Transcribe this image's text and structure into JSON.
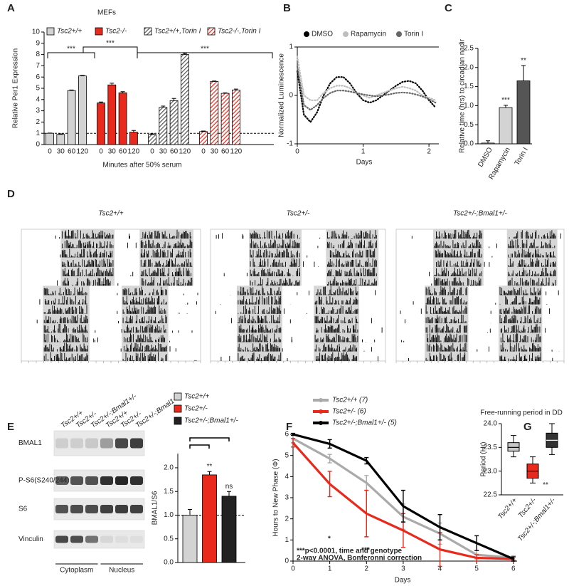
{
  "chart_data": [
    {
      "type": "bar",
      "panel": "A",
      "title": "MEFs",
      "y_label": "Relative Per1 Expression",
      "x_label": "Minutes after 50% serum",
      "categories": [
        "0",
        "30",
        "60",
        "120"
      ],
      "series": [
        {
          "name": "Tsc2+/+",
          "color": "#d3d3d3",
          "hatch": false,
          "values": [
            1.0,
            0.9,
            4.8,
            6.1
          ],
          "errors": [
            0.02,
            0.05,
            0.05,
            0.05
          ]
        },
        {
          "name": "Tsc2-/-",
          "color": "#e8291c",
          "hatch": false,
          "values": [
            3.7,
            5.3,
            4.6,
            1.1
          ],
          "errors": [
            0.08,
            0.15,
            0.1,
            0.15
          ]
        },
        {
          "name": "Tsc2+/+,Torin I",
          "color": "#555555",
          "hatch": true,
          "values": [
            0.9,
            3.3,
            3.9,
            8.0
          ],
          "errors": [
            0.05,
            0.12,
            0.2,
            0.1
          ]
        },
        {
          "name": "Tsc2-/-,Torin I",
          "color": "#e8291c",
          "hatch": true,
          "values": [
            1.15,
            5.6,
            4.55,
            4.85
          ],
          "errors": [
            0.05,
            0.05,
            0.05,
            0.08
          ]
        }
      ],
      "ylim": [
        0,
        10
      ],
      "yticks": [
        0,
        1,
        2,
        3,
        4,
        5,
        6,
        7,
        8,
        9,
        10
      ],
      "reference_line": 1,
      "annotations": [
        "***",
        "***",
        "***"
      ]
    },
    {
      "type": "line",
      "panel": "B",
      "y_label": "Normalized Luminescence",
      "x_label": "Days",
      "x": [
        0,
        0.1,
        0.2,
        0.3,
        0.4,
        0.5,
        0.6,
        0.7,
        0.8,
        0.9,
        1.0,
        1.1,
        1.2,
        1.3,
        1.4,
        1.5,
        1.6,
        1.7,
        1.8,
        1.9,
        2.0,
        2.1
      ],
      "series": [
        {
          "name": "DMSO",
          "color": "#000000",
          "values": [
            0.5,
            -0.4,
            -0.55,
            -0.35,
            0.0,
            0.25,
            0.38,
            0.38,
            0.25,
            0.05,
            -0.1,
            -0.15,
            -0.1,
            0.0,
            0.1,
            0.2,
            0.28,
            0.3,
            0.25,
            0.1,
            -0.1,
            -0.25
          ]
        },
        {
          "name": "Rapamycin",
          "color": "#bdbdbd",
          "values": [
            0.8,
            0.0,
            -0.1,
            -0.1,
            0.05,
            0.15,
            0.2,
            0.2,
            0.15,
            0.05,
            0.0,
            -0.05,
            0.0,
            0.05,
            0.1,
            0.15,
            0.18,
            0.15,
            0.1,
            0.0,
            -0.05,
            -0.1
          ]
        },
        {
          "name": "Torin I",
          "color": "#666666",
          "values": [
            0.6,
            -0.2,
            -0.3,
            -0.2,
            -0.05,
            0.05,
            0.1,
            0.1,
            0.08,
            0.05,
            0.02,
            0.0,
            -0.02,
            0.0,
            0.02,
            0.05,
            0.06,
            0.05,
            0.02,
            -0.02,
            -0.08,
            -0.15
          ]
        }
      ],
      "xlim": [
        0,
        2.15
      ],
      "ylim": [
        -1,
        1
      ],
      "xticks": [
        0,
        1,
        2
      ],
      "yticks": [
        -1,
        0,
        1
      ]
    },
    {
      "type": "bar",
      "panel": "C",
      "y_label": "Relative time (hrs) to circadian nadir",
      "categories": [
        "DMSO",
        "Rapamycin",
        "Torin I"
      ],
      "values": [
        0.02,
        0.95,
        1.65
      ],
      "errors": [
        0.06,
        0.06,
        0.4
      ],
      "colors": [
        "#ffffff",
        "#d3d3d3",
        "#555555"
      ],
      "ylim": [
        0,
        2.5
      ],
      "yticks": [
        {
          "value": 0,
          "label": "0.0"
        },
        0.5,
        {
          "value": 1,
          "label": "1.0"
        },
        1.5,
        {
          "value": 2,
          "label": "2.0"
        },
        2.5
      ],
      "significance": [
        null,
        "***",
        "**"
      ]
    },
    {
      "type": "actogram",
      "panel": "D",
      "titles": [
        "Tsc2+/+",
        "Tsc2+/-",
        "Tsc2+/-;Bmal1+/-"
      ],
      "title_colors": [
        "#999999",
        "#e8291c",
        "#111111"
      ]
    },
    {
      "type": "western_blot",
      "panel": "E",
      "lanes": [
        "Tsc2+/+",
        "Tsc2+/-",
        "Tsc2+/-;Bmal1+/-",
        "Tsc2+/+",
        "Tsc2+/-",
        "Tsc2+/-;Bmal1+/-"
      ],
      "proteins": [
        "BMAL1",
        "P-S6(S240/244)",
        "S6",
        "Vinculin"
      ],
      "fractions": [
        "Cytoplasm",
        "Nucleus"
      ]
    },
    {
      "type": "bar",
      "y_label": "BMAL1/S6",
      "series": [
        {
          "name": "Tsc2+/+",
          "color": "#d3d3d3",
          "values": [
            1.0
          ],
          "errors": [
            0.12
          ]
        },
        {
          "name": "Tsc2+/-",
          "color": "#e8291c",
          "values": [
            1.85
          ],
          "errors": [
            0.07
          ]
        },
        {
          "name": "Tsc2+/-;Bmal1+/-",
          "color": "#222222",
          "values": [
            1.4
          ],
          "errors": [
            0.1
          ]
        }
      ],
      "ylim": [
        0,
        2.3
      ],
      "yticks": [
        {
          "value": 0,
          "label": "0.0"
        },
        0.5,
        {
          "value": 1,
          "label": "1.0"
        },
        1.5,
        {
          "value": 2,
          "label": "2.0"
        }
      ],
      "reference_line": 1,
      "significance": [
        null,
        "**",
        "ns"
      ]
    },
    {
      "type": "line",
      "panel": "F",
      "y_label": "Hours to New Phase (Φ)",
      "x_label": "Days",
      "x": [
        0,
        1,
        2,
        3,
        4,
        5,
        6
      ],
      "series": [
        {
          "name": "Tsc2+/+ (7)",
          "color": "#aaaaaa",
          "values": [
            5.8,
            4.85,
            3.7,
            2.1,
            1.3,
            0.3,
            0.15
          ],
          "errors": [
            0.2,
            0.2,
            0.35,
            0.6,
            0.5,
            0.2,
            0.1
          ]
        },
        {
          "name": "Tsc2+/- (6)",
          "color": "#e8291c",
          "values": [
            5.6,
            3.65,
            2.25,
            1.45,
            0.55,
            0.15,
            0.1
          ],
          "errors": [
            0.2,
            0.6,
            1.1,
            0.8,
            0.8,
            0.15,
            0.1
          ]
        },
        {
          "name": "Tsc2+/-;Bmal1+/- (5)",
          "color": "#000000",
          "values": [
            6.0,
            5.55,
            4.75,
            2.6,
            1.6,
            0.85,
            0.1
          ],
          "errors": [
            0.05,
            0.2,
            0.15,
            0.75,
            0.6,
            0.35,
            0.1
          ]
        }
      ],
      "xlim": [
        0,
        6.1
      ],
      "ylim": [
        0,
        6
      ],
      "xticks": [
        0,
        1,
        2,
        3,
        4,
        5,
        6
      ],
      "yticks": [
        0,
        1,
        2,
        3,
        4,
        5,
        6
      ],
      "annotations": [
        "*",
        "***"
      ],
      "notes": [
        "***p<0.0001, time and genotype",
        "2-way ANOVA, Bonferonni correction"
      ]
    },
    {
      "type": "box",
      "panel": "G",
      "title": "Free-running period in DD",
      "y_label": "Period (Hr)",
      "categories": [
        "Tsc2+/+",
        "Tsc2+/-",
        "Tsc2+/-;Bmal1+/-"
      ],
      "boxes": [
        {
          "min": 23.3,
          "q1": 23.42,
          "median": 23.5,
          "q3": 23.6,
          "max": 23.75
        },
        {
          "min": 22.75,
          "q1": 22.85,
          "median": 23.0,
          "q3": 23.15,
          "max": 23.3
        },
        {
          "min": 23.35,
          "q1": 23.5,
          "median": 23.65,
          "q3": 23.8,
          "max": 24.0
        }
      ],
      "colors": [
        "#c8c8c8",
        "#e8291c",
        "#333333"
      ],
      "ylim": [
        22.5,
        24.0
      ],
      "yticks": [
        22.5,
        {
          "value": 23,
          "label": "23.0"
        },
        23.5,
        {
          "value": 24,
          "label": "24.0"
        }
      ],
      "significance": [
        null,
        "**",
        null
      ]
    }
  ]
}
